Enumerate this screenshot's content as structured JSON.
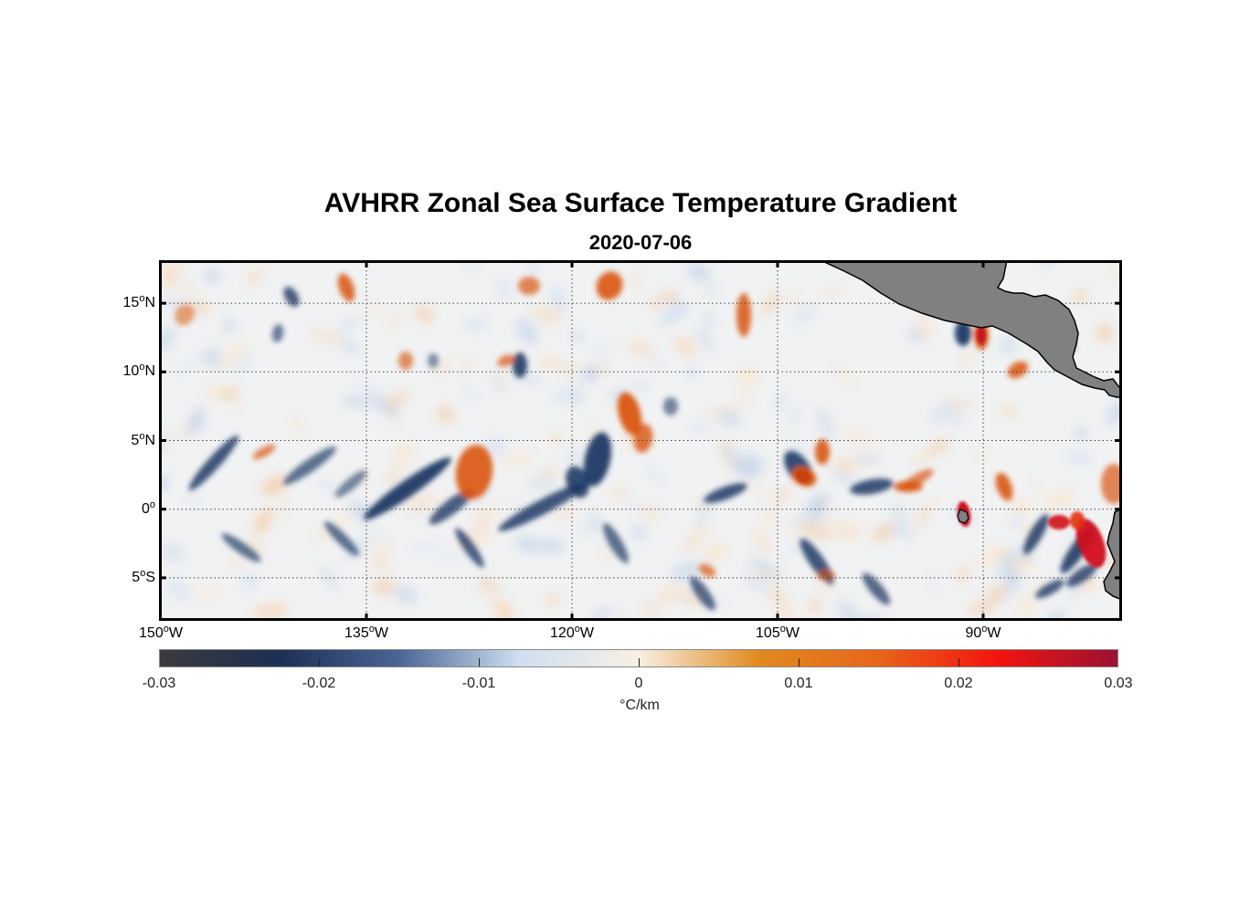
{
  "map": {
    "title": "AVHRR Zonal Sea Surface Temperature Gradient",
    "date": "2020-07-06",
    "lat_labels": [
      {
        "value": 15,
        "num": "15",
        "deg": "o",
        "hem": "N"
      },
      {
        "value": 10,
        "num": "10",
        "deg": "o",
        "hem": "N"
      },
      {
        "value": 5,
        "num": "5",
        "deg": "o",
        "hem": "N"
      },
      {
        "value": 0,
        "num": "0",
        "deg": "o",
        "hem": ""
      },
      {
        "value": -5,
        "num": "5",
        "deg": "o",
        "hem": "S"
      }
    ],
    "lon_labels": [
      {
        "value": -150,
        "num": "150",
        "deg": "o",
        "hem": "W"
      },
      {
        "value": -135,
        "num": "135",
        "deg": "o",
        "hem": "W"
      },
      {
        "value": -120,
        "num": "120",
        "deg": "o",
        "hem": "W"
      },
      {
        "value": -105,
        "num": "105",
        "deg": "o",
        "hem": "W"
      },
      {
        "value": -90,
        "num": "90",
        "deg": "o",
        "hem": "W"
      }
    ],
    "extent": {
      "lon_min": -150,
      "lon_max": -80,
      "lat_min": -8,
      "lat_max": 18
    },
    "land_color": "#808080",
    "colors": {
      "negative": "#1f3a66",
      "positive": "#d9540a",
      "strong_positive": "#d0101a"
    }
  },
  "colorbar": {
    "min": -0.03,
    "max": 0.03,
    "ticks": [
      {
        "value": -0.03,
        "label": "-0.03"
      },
      {
        "value": -0.02,
        "label": "-0.02"
      },
      {
        "value": -0.01,
        "label": "-0.01"
      },
      {
        "value": 0,
        "label": "0"
      },
      {
        "value": 0.01,
        "label": "0.01"
      },
      {
        "value": 0.02,
        "label": "0.02"
      },
      {
        "value": 0.03,
        "label": "0.03"
      }
    ],
    "unit": "°C/km",
    "stops": [
      "#3b3b3b",
      "#1d2f55",
      "#4a6595",
      "#cfdff0",
      "#f7f0e4",
      "#e08a1e",
      "#e8651a",
      "#f2140e",
      "#9a1234"
    ]
  }
}
